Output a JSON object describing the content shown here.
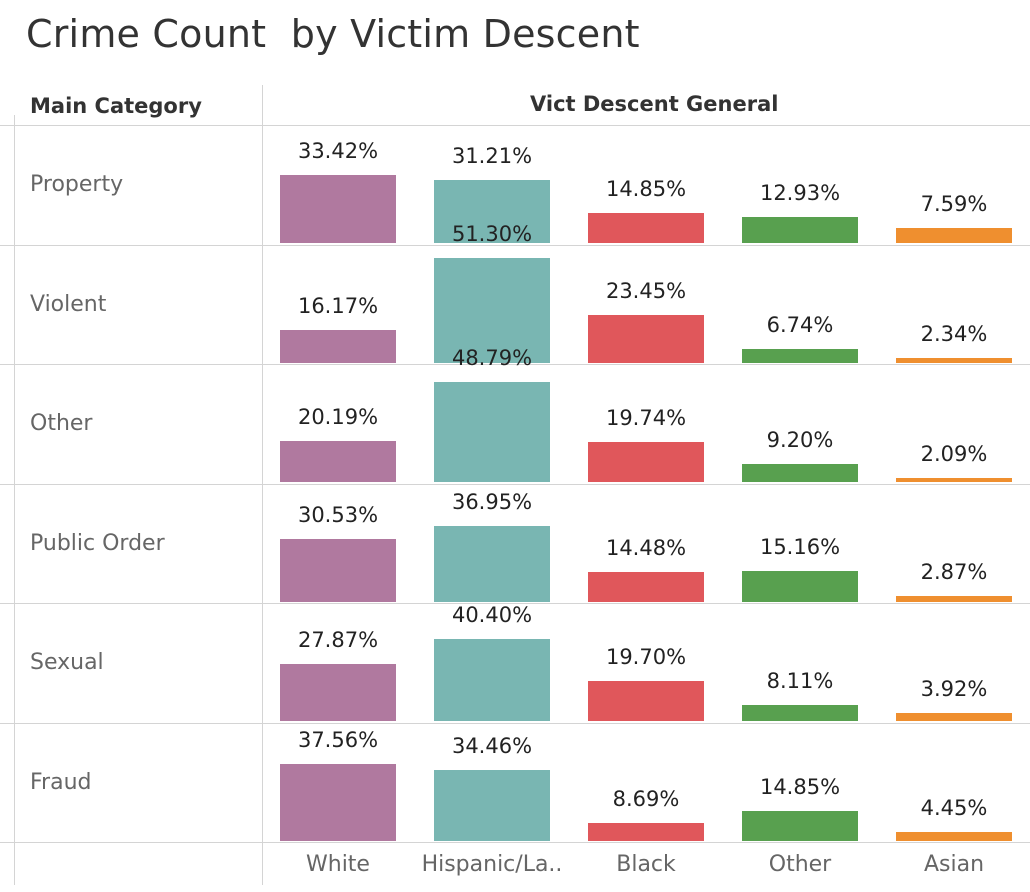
{
  "title": "Crime Count  by Victim Descent",
  "headers": {
    "row_header": "Main Category",
    "col_header": "Vict Descent General"
  },
  "colors": {
    "White": "#b0799f",
    "Hispanic/La..": "#79b6b2",
    "Black": "#e0575b",
    "Other": "#58a04f",
    "Asian": "#ef8f2f"
  },
  "chart_data": {
    "type": "bar",
    "layout": "small-multiples",
    "title": "Crime Count  by Victim Descent",
    "row_dimension": "Main Category",
    "column_dimension": "Vict Descent General",
    "categories": [
      "White",
      "Hispanic/La..",
      "Black",
      "Other",
      "Asian"
    ],
    "rows": [
      {
        "name": "Property",
        "values": [
          33.42,
          31.21,
          14.85,
          12.93,
          7.59
        ],
        "labels": [
          "33.42%",
          "31.21%",
          "14.85%",
          "12.93%",
          "7.59%"
        ]
      },
      {
        "name": "Violent",
        "values": [
          16.17,
          51.3,
          23.45,
          6.74,
          2.34
        ],
        "labels": [
          "16.17%",
          "51.30%",
          "23.45%",
          "6.74%",
          "2.34%"
        ]
      },
      {
        "name": "Other",
        "values": [
          20.19,
          48.79,
          19.74,
          9.2,
          2.09
        ],
        "labels": [
          "20.19%",
          "48.79%",
          "19.74%",
          "9.20%",
          "2.09%"
        ]
      },
      {
        "name": "Public Order",
        "values": [
          30.53,
          36.95,
          14.48,
          15.16,
          2.87
        ],
        "labels": [
          "30.53%",
          "36.95%",
          "14.48%",
          "15.16%",
          "2.87%"
        ]
      },
      {
        "name": "Sexual",
        "values": [
          27.87,
          40.4,
          19.7,
          8.11,
          3.92
        ],
        "labels": [
          "27.87%",
          "40.40%",
          "19.70%",
          "8.11%",
          "3.92%"
        ]
      },
      {
        "name": "Fraud",
        "values": [
          37.56,
          34.46,
          8.69,
          14.85,
          4.45
        ],
        "labels": [
          "37.56%",
          "34.46%",
          "8.69%",
          "14.85%",
          "4.45%"
        ]
      }
    ],
    "unit": "%",
    "grid": false
  }
}
